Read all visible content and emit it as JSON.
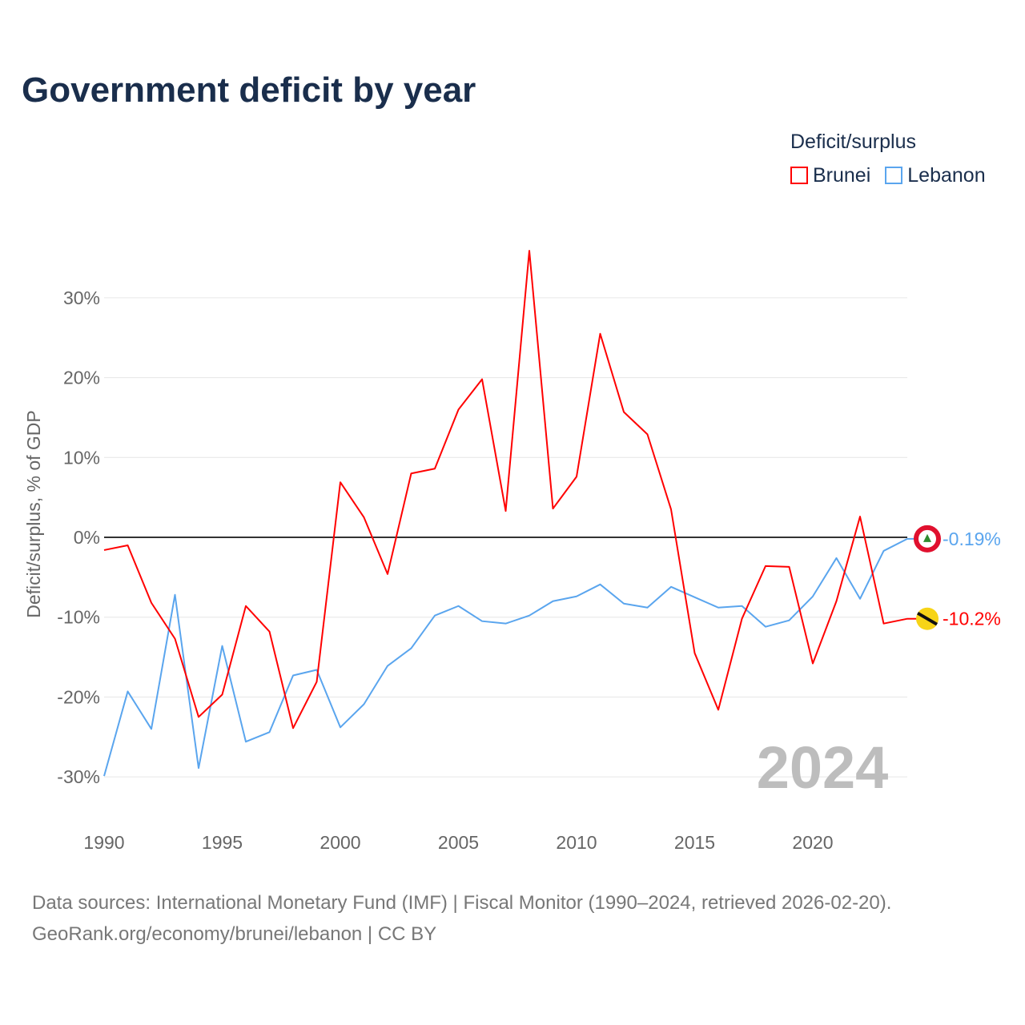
{
  "title": "Government deficit by year",
  "legend": {
    "title": "Deficit/surplus",
    "items": [
      {
        "label": "Brunei",
        "color": "#ff0000"
      },
      {
        "label": "Lebanon",
        "color": "#5aa5ee"
      }
    ]
  },
  "footer": {
    "line1": "Data sources: International Monetary Fund (IMF) | Fiscal Monitor (1990–2024, retrieved 2026-02-20).",
    "line2": "GeoRank.org/economy/brunei/lebanon | CC BY"
  },
  "chart_data": {
    "type": "line",
    "ylabel": "Deficit/surplus, % of GDP",
    "year_label": "2024",
    "xlim": [
      1990,
      2024
    ],
    "ylim": [
      -30,
      30
    ],
    "x_ticks": [
      1990,
      1995,
      2000,
      2005,
      2010,
      2015,
      2020
    ],
    "y_ticks": [
      {
        "v": 30,
        "label": "30%"
      },
      {
        "v": 20,
        "label": "20%"
      },
      {
        "v": 10,
        "label": "10%"
      },
      {
        "v": 0,
        "label": "0%"
      },
      {
        "v": -10,
        "label": "-10%"
      },
      {
        "v": -20,
        "label": "-20%"
      },
      {
        "v": -30,
        "label": "-30%"
      }
    ],
    "x": [
      1990,
      1991,
      1992,
      1993,
      1994,
      1995,
      1996,
      1997,
      1998,
      1999,
      2000,
      2001,
      2002,
      2003,
      2004,
      2005,
      2006,
      2007,
      2008,
      2009,
      2010,
      2011,
      2012,
      2013,
      2014,
      2015,
      2016,
      2017,
      2018,
      2019,
      2020,
      2021,
      2022,
      2023,
      2024
    ],
    "series": [
      {
        "name": "Brunei",
        "color": "#ff0000",
        "end_label": "-10.2%",
        "values": [
          -1.6,
          -1.0,
          -8.2,
          -12.7,
          -22.5,
          -19.7,
          -8.6,
          -11.8,
          -23.9,
          -18.1,
          6.9,
          2.5,
          -4.6,
          8.0,
          8.6,
          16.0,
          19.8,
          3.3,
          35.9,
          3.6,
          7.6,
          25.5,
          15.7,
          12.9,
          3.5,
          -14.5,
          -21.6,
          -10.2,
          -3.6,
          -3.7,
          -15.8,
          -8.0,
          2.6,
          -10.8,
          -10.2
        ]
      },
      {
        "name": "Lebanon",
        "color": "#5aa5ee",
        "end_label": "-0.19%",
        "values": [
          -29.9,
          -19.3,
          -24.0,
          -7.2,
          -28.9,
          -13.6,
          -25.6,
          -24.4,
          -17.3,
          -16.6,
          -23.8,
          -20.9,
          -16.1,
          -13.9,
          -9.8,
          -8.6,
          -10.5,
          -10.8,
          -9.8,
          -8.0,
          -7.4,
          -5.9,
          -8.3,
          -8.8,
          -6.2,
          -7.5,
          -8.8,
          -8.6,
          -11.2,
          -10.4,
          -7.4,
          -2.6,
          -7.7,
          -1.7,
          -0.19
        ]
      }
    ]
  }
}
